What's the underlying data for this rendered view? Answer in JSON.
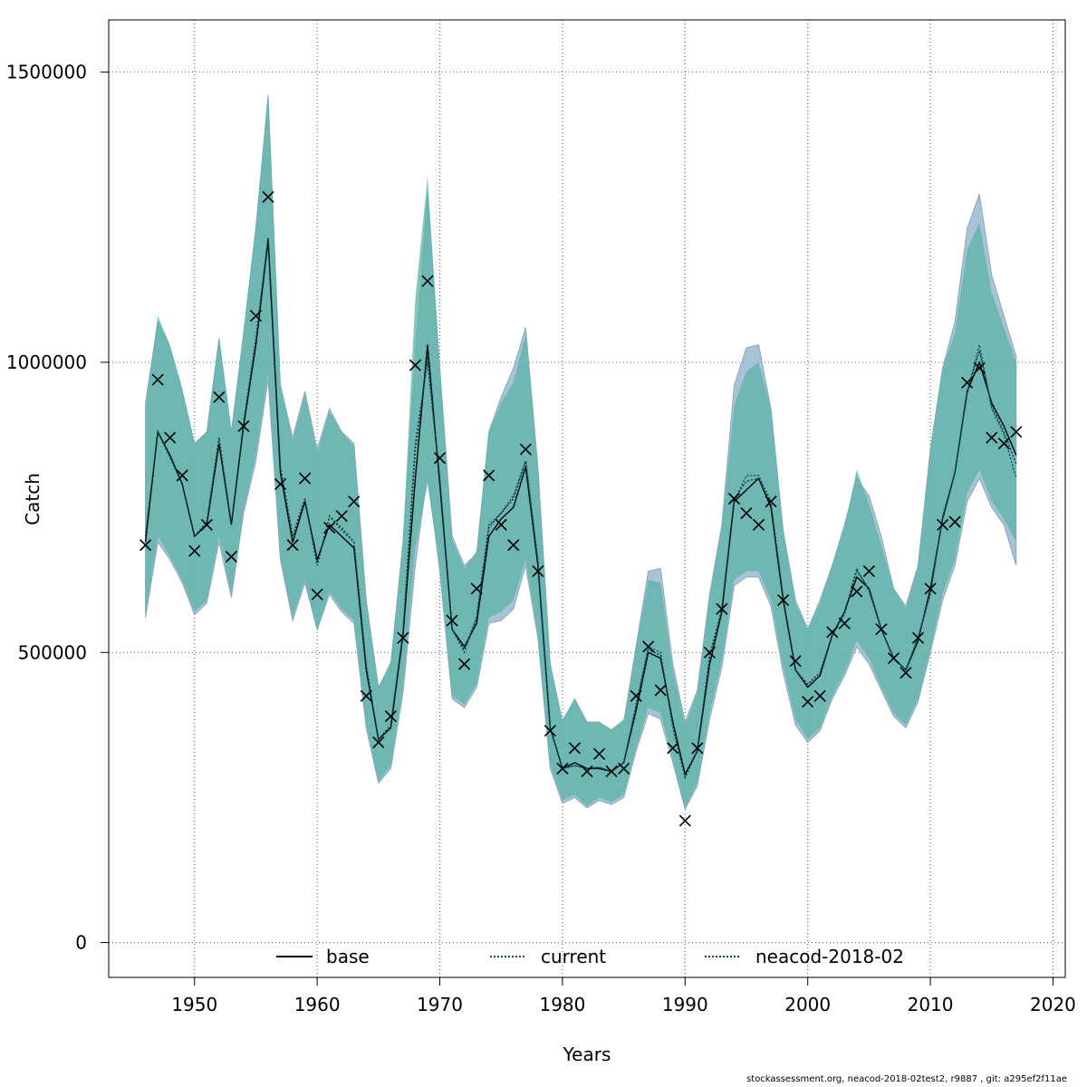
{
  "footer": "stockassessment.org, neacod-2018-02test2, r9887 , git: a295ef2f11ae",
  "chart_data": {
    "type": "line",
    "xlabel": "Years",
    "ylabel": "Catch",
    "xlim": [
      1943,
      2021
    ],
    "ylim": [
      -60000,
      1590000
    ],
    "x_ticks": [
      1950,
      1960,
      1970,
      1980,
      1990,
      2000,
      2010,
      2020
    ],
    "x_tick_labels": [
      "1950",
      "1960",
      "1970",
      "1980",
      "1990",
      "2000",
      "2010",
      "2020"
    ],
    "y_ticks": [
      0,
      500000,
      1000000,
      1500000
    ],
    "y_tick_labels": [
      "0",
      "500000",
      "1000000",
      "1500000"
    ],
    "grid": true,
    "legend_position": "bottom",
    "legend": [
      {
        "name": "base",
        "style": "solid"
      },
      {
        "name": "current",
        "style": "dotted"
      },
      {
        "name": "neacod-2018-02",
        "style": "dotted"
      }
    ],
    "colors": {
      "band_base": "#9ab9cf",
      "band_current": "#5bb3a5",
      "line_base": "#000000",
      "line_current": "#0b4a6e",
      "line_neacod": "#0d3a32"
    },
    "years": [
      1946,
      1947,
      1948,
      1949,
      1950,
      1951,
      1952,
      1953,
      1954,
      1955,
      1956,
      1957,
      1958,
      1959,
      1960,
      1961,
      1962,
      1963,
      1964,
      1965,
      1966,
      1967,
      1968,
      1969,
      1970,
      1971,
      1972,
      1973,
      1974,
      1975,
      1976,
      1977,
      1978,
      1979,
      1980,
      1981,
      1982,
      1983,
      1984,
      1985,
      1986,
      1987,
      1988,
      1989,
      1990,
      1991,
      1992,
      1993,
      1994,
      1995,
      1996,
      1997,
      1998,
      1999,
      2000,
      2001,
      2002,
      2003,
      2004,
      2005,
      2006,
      2007,
      2008,
      2009,
      2010,
      2011,
      2012,
      2013,
      2014,
      2015,
      2016,
      2017
    ],
    "observed": [
      685000,
      970000,
      870000,
      805000,
      675000,
      720000,
      940000,
      665000,
      890000,
      1080000,
      1285000,
      790000,
      685000,
      800000,
      600000,
      715000,
      735000,
      760000,
      425000,
      345000,
      390000,
      525000,
      995000,
      1140000,
      835000,
      555000,
      480000,
      610000,
      805000,
      720000,
      685000,
      850000,
      640000,
      365000,
      300000,
      335000,
      295000,
      325000,
      295000,
      300000,
      425000,
      510000,
      435000,
      335000,
      210000,
      335000,
      500000,
      575000,
      765000,
      740000,
      720000,
      760000,
      590000,
      485000,
      415000,
      425000,
      535000,
      550000,
      605000,
      640000,
      540000,
      490000,
      465000,
      525000,
      610000,
      720000,
      725000,
      965000,
      990000,
      870000,
      860000,
      880000
    ],
    "series": [
      {
        "name": "base",
        "values": [
          690000,
          880000,
          840000,
          790000,
          700000,
          720000,
          860000,
          720000,
          890000,
          1030000,
          1210000,
          810000,
          690000,
          760000,
          660000,
          720000,
          700000,
          680000,
          470000,
          350000,
          370000,
          530000,
          800000,
          1030000,
          790000,
          540000,
          510000,
          550000,
          700000,
          730000,
          750000,
          820000,
          650000,
          370000,
          300000,
          310000,
          300000,
          300000,
          295000,
          310000,
          400000,
          500000,
          490000,
          380000,
          290000,
          330000,
          480000,
          570000,
          760000,
          780000,
          800000,
          750000,
          590000,
          470000,
          440000,
          460000,
          530000,
          570000,
          630000,
          610000,
          540000,
          490000,
          470000,
          520000,
          610000,
          730000,
          810000,
          950000,
          1000000,
          930000,
          890000,
          840000
        ],
        "lower": [
          560000,
          690000,
          660000,
          620000,
          565000,
          585000,
          690000,
          595000,
          740000,
          830000,
          970000,
          660000,
          555000,
          620000,
          540000,
          600000,
          570000,
          550000,
          370000,
          275000,
          300000,
          430000,
          650000,
          810000,
          640000,
          420000,
          405000,
          440000,
          550000,
          555000,
          575000,
          650000,
          525000,
          300000,
          240000,
          250000,
          232000,
          245000,
          238000,
          250000,
          330000,
          395000,
          385000,
          310000,
          230000,
          270000,
          385000,
          475000,
          615000,
          630000,
          630000,
          580000,
          465000,
          375000,
          345000,
          365000,
          420000,
          460000,
          510000,
          480000,
          435000,
          390000,
          370000,
          415000,
          500000,
          590000,
          650000,
          760000,
          800000,
          750000,
          720000,
          650000
        ],
        "upper": [
          930000,
          1070000,
          1025000,
          950000,
          860000,
          880000,
          1040000,
          880000,
          1050000,
          1230000,
          1460000,
          960000,
          870000,
          950000,
          850000,
          920000,
          880000,
          860000,
          590000,
          440000,
          480000,
          690000,
          1010000,
          1290000,
          990000,
          700000,
          650000,
          670000,
          880000,
          940000,
          990000,
          1060000,
          820000,
          480000,
          380000,
          420000,
          380000,
          380000,
          365000,
          380000,
          510000,
          640000,
          645000,
          480000,
          380000,
          435000,
          600000,
          720000,
          960000,
          1025000,
          1030000,
          920000,
          710000,
          590000,
          540000,
          590000,
          650000,
          720000,
          800000,
          770000,
          700000,
          610000,
          580000,
          650000,
          850000,
          990000,
          1070000,
          1230000,
          1290000,
          1150000,
          1080000,
          1010000
        ]
      },
      {
        "name": "current",
        "values": [
          700000,
          880000,
          835000,
          790000,
          700000,
          725000,
          870000,
          720000,
          895000,
          1040000,
          1215000,
          820000,
          700000,
          765000,
          650000,
          735000,
          710000,
          690000,
          480000,
          350000,
          375000,
          535000,
          860000,
          1000000,
          800000,
          540000,
          500000,
          560000,
          720000,
          740000,
          770000,
          830000,
          660000,
          370000,
          300000,
          305000,
          300000,
          302000,
          295000,
          310000,
          410000,
          510000,
          500000,
          370000,
          285000,
          330000,
          495000,
          575000,
          760000,
          805000,
          805000,
          760000,
          595000,
          470000,
          445000,
          465000,
          530000,
          565000,
          645000,
          605000,
          540000,
          490000,
          470000,
          525000,
          600000,
          735000,
          810000,
          945000,
          1030000,
          920000,
          875000,
          800000
        ],
        "lower": [
          565000,
          700000,
          665000,
          625000,
          570000,
          590000,
          700000,
          600000,
          745000,
          840000,
          980000,
          665000,
          560000,
          625000,
          535000,
          605000,
          575000,
          555000,
          375000,
          278000,
          305000,
          440000,
          680000,
          790000,
          645000,
          425000,
          410000,
          445000,
          560000,
          570000,
          590000,
          660000,
          530000,
          305000,
          245000,
          255000,
          235000,
          250000,
          242000,
          255000,
          335000,
          405000,
          395000,
          315000,
          232000,
          275000,
          395000,
          485000,
          625000,
          640000,
          640000,
          590000,
          475000,
          385000,
          350000,
          370000,
          425000,
          465000,
          520000,
          490000,
          440000,
          395000,
          375000,
          420000,
          505000,
          600000,
          660000,
          775000,
          815000,
          760000,
          730000,
          690000
        ],
        "upper": [
          920000,
          1080000,
          1030000,
          955000,
          860000,
          880000,
          1045000,
          880000,
          1055000,
          1240000,
          1465000,
          965000,
          865000,
          945000,
          845000,
          915000,
          880000,
          855000,
          585000,
          440000,
          485000,
          695000,
          1110000,
          1320000,
          995000,
          695000,
          645000,
          675000,
          880000,
          930000,
          965000,
          1050000,
          820000,
          480000,
          385000,
          420000,
          380000,
          380000,
          368000,
          385000,
          510000,
          625000,
          620000,
          470000,
          375000,
          430000,
          600000,
          715000,
          925000,
          985000,
          1000000,
          920000,
          710000,
          585000,
          540000,
          585000,
          650000,
          715000,
          815000,
          755000,
          685000,
          610000,
          575000,
          650000,
          850000,
          990000,
          1050000,
          1195000,
          1240000,
          1120000,
          1060000,
          1000000
        ]
      },
      {
        "name": "neacod-2018-02",
        "values": [
          700000,
          880000,
          840000,
          790000,
          700000,
          725000,
          870000,
          720000,
          895000,
          1040000,
          1215000,
          820000,
          700000,
          765000,
          650000,
          735000,
          715000,
          690000,
          475000,
          350000,
          375000,
          535000,
          850000,
          1010000,
          800000,
          540000,
          505000,
          560000,
          715000,
          740000,
          765000,
          830000,
          655000,
          370000,
          300000,
          305000,
          300000,
          302000,
          295000,
          310000,
          405000,
          505000,
          495000,
          375000,
          285000,
          330000,
          490000,
          575000,
          765000,
          795000,
          800000,
          755000,
          595000,
          470000,
          445000,
          465000,
          530000,
          570000,
          640000,
          610000,
          540000,
          490000,
          470000,
          525000,
          605000,
          730000,
          810000,
          950000,
          1020000,
          925000,
          880000,
          825000
        ]
      }
    ]
  }
}
